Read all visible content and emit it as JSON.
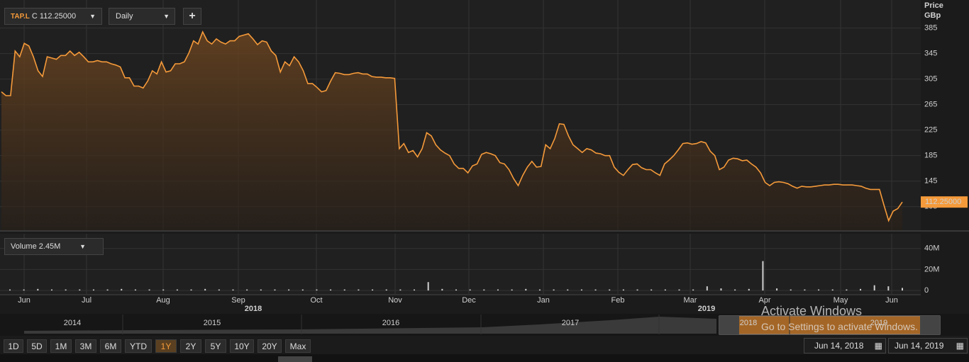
{
  "toolbar": {
    "symbol": "TAP.L",
    "quote": "C 112.25000",
    "interval": "Daily",
    "add": "+"
  },
  "chart_data": {
    "type": "line",
    "y_axis_label": "Price",
    "y_unit": "GBp",
    "xticks": [
      "Jun",
      "Jul",
      "Aug",
      "Sep",
      "Oct",
      "Nov",
      "Dec",
      "Jan",
      "Feb",
      "Mar",
      "Apr",
      "May",
      "Jun"
    ],
    "year_labels": [
      "2018",
      "2019"
    ],
    "series": [
      {
        "name": "TAP.L",
        "color": "#f59a3a",
        "values": [
          285,
          279,
          279,
          349,
          340,
          361,
          357,
          340,
          318,
          309,
          340,
          338,
          336,
          342,
          342,
          349,
          342,
          347,
          340,
          332,
          332,
          334,
          332,
          332,
          329,
          327,
          324,
          307,
          307,
          294,
          294,
          291,
          302,
          318,
          313,
          332,
          316,
          318,
          329,
          329,
          332,
          346,
          365,
          360,
          379,
          365,
          360,
          368,
          363,
          360,
          365,
          365,
          372,
          374,
          376,
          368,
          359,
          365,
          363,
          349,
          342,
          316,
          332,
          326,
          340,
          332,
          318,
          298,
          298,
          292,
          285,
          287,
          302,
          315,
          314,
          312,
          312,
          314,
          315,
          313,
          313,
          309,
          308,
          308,
          307,
          307,
          306,
          196,
          204,
          190,
          193,
          183,
          196,
          221,
          216,
          202,
          194,
          189,
          185,
          172,
          165,
          165,
          158,
          169,
          172,
          187,
          190,
          188,
          185,
          174,
          172,
          163,
          149,
          138,
          154,
          167,
          176,
          167,
          168,
          202,
          196,
          212,
          235,
          234,
          216,
          202,
          196,
          190,
          196,
          194,
          189,
          188,
          185,
          185,
          167,
          159,
          154,
          163,
          171,
          172,
          166,
          163,
          163,
          158,
          154,
          172,
          178,
          185,
          194,
          204,
          205,
          203,
          204,
          207,
          205,
          192,
          185,
          163,
          167,
          178,
          181,
          180,
          177,
          178,
          172,
          167,
          158,
          143,
          138,
          143,
          144,
          143,
          141,
          137,
          134,
          137,
          136,
          136,
          137,
          138,
          139,
          139,
          140,
          140,
          139,
          139,
          139,
          138,
          137,
          134,
          132,
          132,
          132,
          107,
          83,
          98,
          102,
          112.25
        ]
      }
    ],
    "ylim": [
      68,
      429
    ],
    "yticks": [
      385,
      345,
      305,
      265,
      225,
      185,
      145,
      105
    ],
    "last_value_label": "112.25000",
    "grid": true
  },
  "volume_chart": {
    "type": "bar",
    "legend": "Volume",
    "legend_value": "2.45M",
    "color": "#cfcfcf",
    "values": [
      1,
      1,
      1.5,
      1,
      1,
      1,
      1,
      1,
      1.5,
      1,
      1,
      1,
      1,
      1,
      1.5,
      1,
      1,
      1,
      1,
      1,
      1,
      1,
      1,
      1,
      1,
      1,
      1,
      1,
      1,
      1,
      8,
      1.5,
      1,
      1,
      1,
      1,
      1,
      1.5,
      1,
      1,
      1,
      1,
      1,
      1,
      1,
      1,
      1,
      1,
      1,
      1,
      4,
      2,
      1,
      1.5,
      28,
      2,
      1,
      1,
      1,
      1,
      1,
      1.5,
      5,
      4,
      2.45
    ],
    "ylim": [
      -4,
      54
    ],
    "yticks": [
      {
        "value": 40,
        "label": "40M"
      },
      {
        "value": 20,
        "label": "20M"
      },
      0
    ]
  },
  "navigator": {
    "years": [
      "2014",
      "2015",
      "2016",
      "2017",
      "2018",
      "2019"
    ]
  },
  "ranges": [
    "1D",
    "5D",
    "1M",
    "3M",
    "6M",
    "YTD",
    "1Y",
    "2Y",
    "5Y",
    "10Y",
    "20Y",
    "Max"
  ],
  "active_range": "1Y",
  "dates": {
    "from": "Jun 14, 2018",
    "to": "Jun 14, 2019"
  },
  "watermark": {
    "title": "Activate Windows",
    "subtitle": "Go to Settings to activate Windows."
  }
}
